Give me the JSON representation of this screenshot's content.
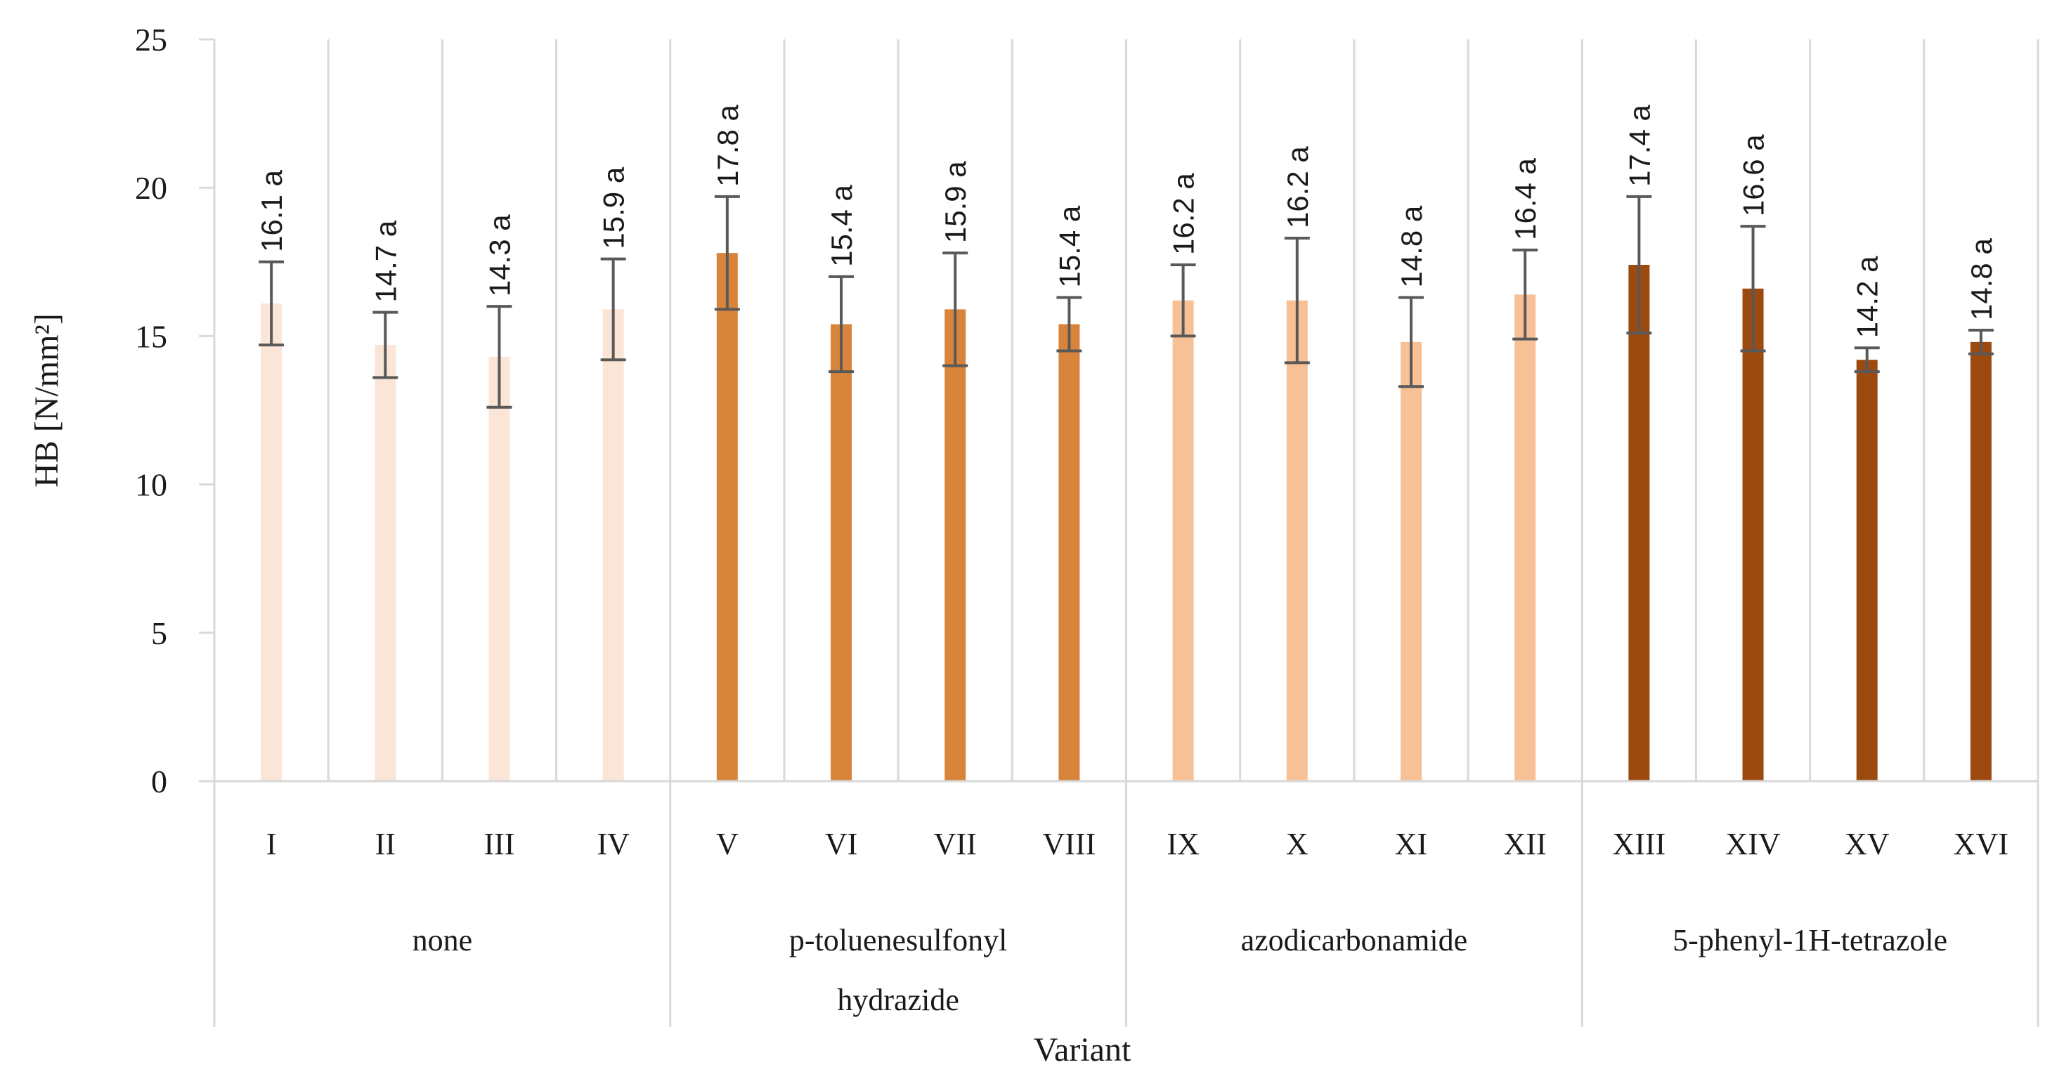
{
  "chart_data": {
    "type": "bar",
    "title": "",
    "xlabel": "Variant",
    "ylabel": "HB [N/mm²]",
    "ylim": [
      0,
      25
    ],
    "yticks": [
      0,
      5,
      10,
      15,
      20,
      25
    ],
    "grid": "vertical separators between categories",
    "categories": [
      "I",
      "II",
      "III",
      "IV",
      "V",
      "VI",
      "VII",
      "VIII",
      "IX",
      "X",
      "XI",
      "XII",
      "XIII",
      "XIV",
      "XV",
      "XVI"
    ],
    "values": [
      16.1,
      14.7,
      14.3,
      15.9,
      17.8,
      15.4,
      15.9,
      15.4,
      16.2,
      16.2,
      14.8,
      16.4,
      17.4,
      16.6,
      14.2,
      14.8
    ],
    "errors": [
      1.4,
      1.1,
      1.7,
      1.7,
      1.9,
      1.6,
      1.9,
      0.9,
      1.2,
      2.1,
      1.5,
      1.5,
      2.3,
      2.1,
      0.4,
      0.4
    ],
    "value_labels": [
      "16.1 a",
      "14.7 a",
      "14.3 a",
      "15.9  a",
      "17.8 a",
      "15.4 a",
      "15.9 a",
      "15.4 a",
      "16.2 a",
      "16.2 a",
      "14.8 a",
      "16.4 a",
      "17.4 a",
      "16.6 a",
      "14.2 a",
      "14.8 a"
    ],
    "groups": [
      {
        "name": "none",
        "lines": [
          "none"
        ],
        "start": 0,
        "count": 4,
        "color": "#FBE5D6"
      },
      {
        "name": "p-toluenesulfonyl hydrazide",
        "lines": [
          "p-toluenesulfonyl",
          "hydrazide"
        ],
        "start": 4,
        "count": 4,
        "color": "#D9843B"
      },
      {
        "name": "azodicarbonamide",
        "lines": [
          "azodicarbonamide"
        ],
        "start": 8,
        "count": 4,
        "color": "#F7C195"
      },
      {
        "name": "5-phenyl-1H-tetrazole",
        "lines": [
          "5-phenyl-1H-tetrazole"
        ],
        "start": 12,
        "count": 4,
        "color": "#9C4A0F"
      }
    ],
    "error_bar_color": "#595959"
  }
}
